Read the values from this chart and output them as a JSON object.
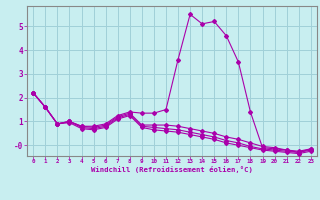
{
  "xlabel": "Windchill (Refroidissement éolien,°C)",
  "background_color": "#c8eef0",
  "grid_color": "#a0d0d8",
  "line_color": "#aa00aa",
  "xlim": [
    -0.5,
    23.5
  ],
  "ylim": [
    -0.45,
    5.85
  ],
  "ytick_labels": [
    "-0",
    "1",
    "2",
    "3",
    "4",
    "5"
  ],
  "ytick_vals": [
    0,
    1,
    2,
    3,
    4,
    5
  ],
  "xticks": [
    0,
    1,
    2,
    3,
    4,
    5,
    6,
    7,
    8,
    9,
    10,
    11,
    12,
    13,
    14,
    15,
    16,
    17,
    18,
    19,
    20,
    21,
    22,
    23
  ],
  "lines": [
    {
      "x": [
        0,
        1,
        2,
        3,
        4,
        5,
        6,
        7,
        8,
        9,
        10,
        11,
        12,
        13,
        14,
        15,
        16,
        17,
        18,
        19,
        20,
        21,
        22,
        23
      ],
      "y": [
        2.2,
        1.6,
        0.9,
        1.0,
        0.8,
        0.8,
        0.9,
        1.25,
        1.4,
        1.35,
        1.35,
        1.5,
        3.6,
        5.5,
        5.1,
        5.2,
        4.6,
        3.5,
        1.4,
        -0.1,
        -0.15,
        -0.2,
        -0.3,
        -0.15
      ]
    },
    {
      "x": [
        0,
        1,
        2,
        3,
        4,
        5,
        6,
        7,
        8,
        9,
        10,
        11,
        12,
        13,
        14,
        15,
        16,
        17,
        18,
        19,
        20,
        21,
        22,
        23
      ],
      "y": [
        2.2,
        1.6,
        0.9,
        1.0,
        0.8,
        0.75,
        0.85,
        1.2,
        1.35,
        0.85,
        0.85,
        0.85,
        0.8,
        0.7,
        0.6,
        0.5,
        0.35,
        0.25,
        0.1,
        -0.05,
        -0.1,
        -0.2,
        -0.25,
        -0.15
      ]
    },
    {
      "x": [
        0,
        1,
        2,
        3,
        4,
        5,
        6,
        7,
        8,
        9,
        10,
        11,
        12,
        13,
        14,
        15,
        16,
        17,
        18,
        19,
        20,
        21,
        22,
        23
      ],
      "y": [
        2.2,
        1.6,
        0.9,
        1.0,
        0.75,
        0.7,
        0.8,
        1.15,
        1.3,
        0.8,
        0.75,
        0.7,
        0.65,
        0.55,
        0.45,
        0.35,
        0.2,
        0.1,
        -0.05,
        -0.15,
        -0.2,
        -0.25,
        -0.3,
        -0.2
      ]
    },
    {
      "x": [
        0,
        1,
        2,
        3,
        4,
        5,
        6,
        7,
        8,
        9,
        10,
        11,
        12,
        13,
        14,
        15,
        16,
        17,
        18,
        19,
        20,
        21,
        22,
        23
      ],
      "y": [
        2.2,
        1.6,
        0.9,
        0.95,
        0.7,
        0.65,
        0.75,
        1.1,
        1.25,
        0.75,
        0.65,
        0.6,
        0.55,
        0.45,
        0.35,
        0.25,
        0.1,
        0.0,
        -0.1,
        -0.2,
        -0.25,
        -0.3,
        -0.35,
        -0.25
      ]
    }
  ]
}
